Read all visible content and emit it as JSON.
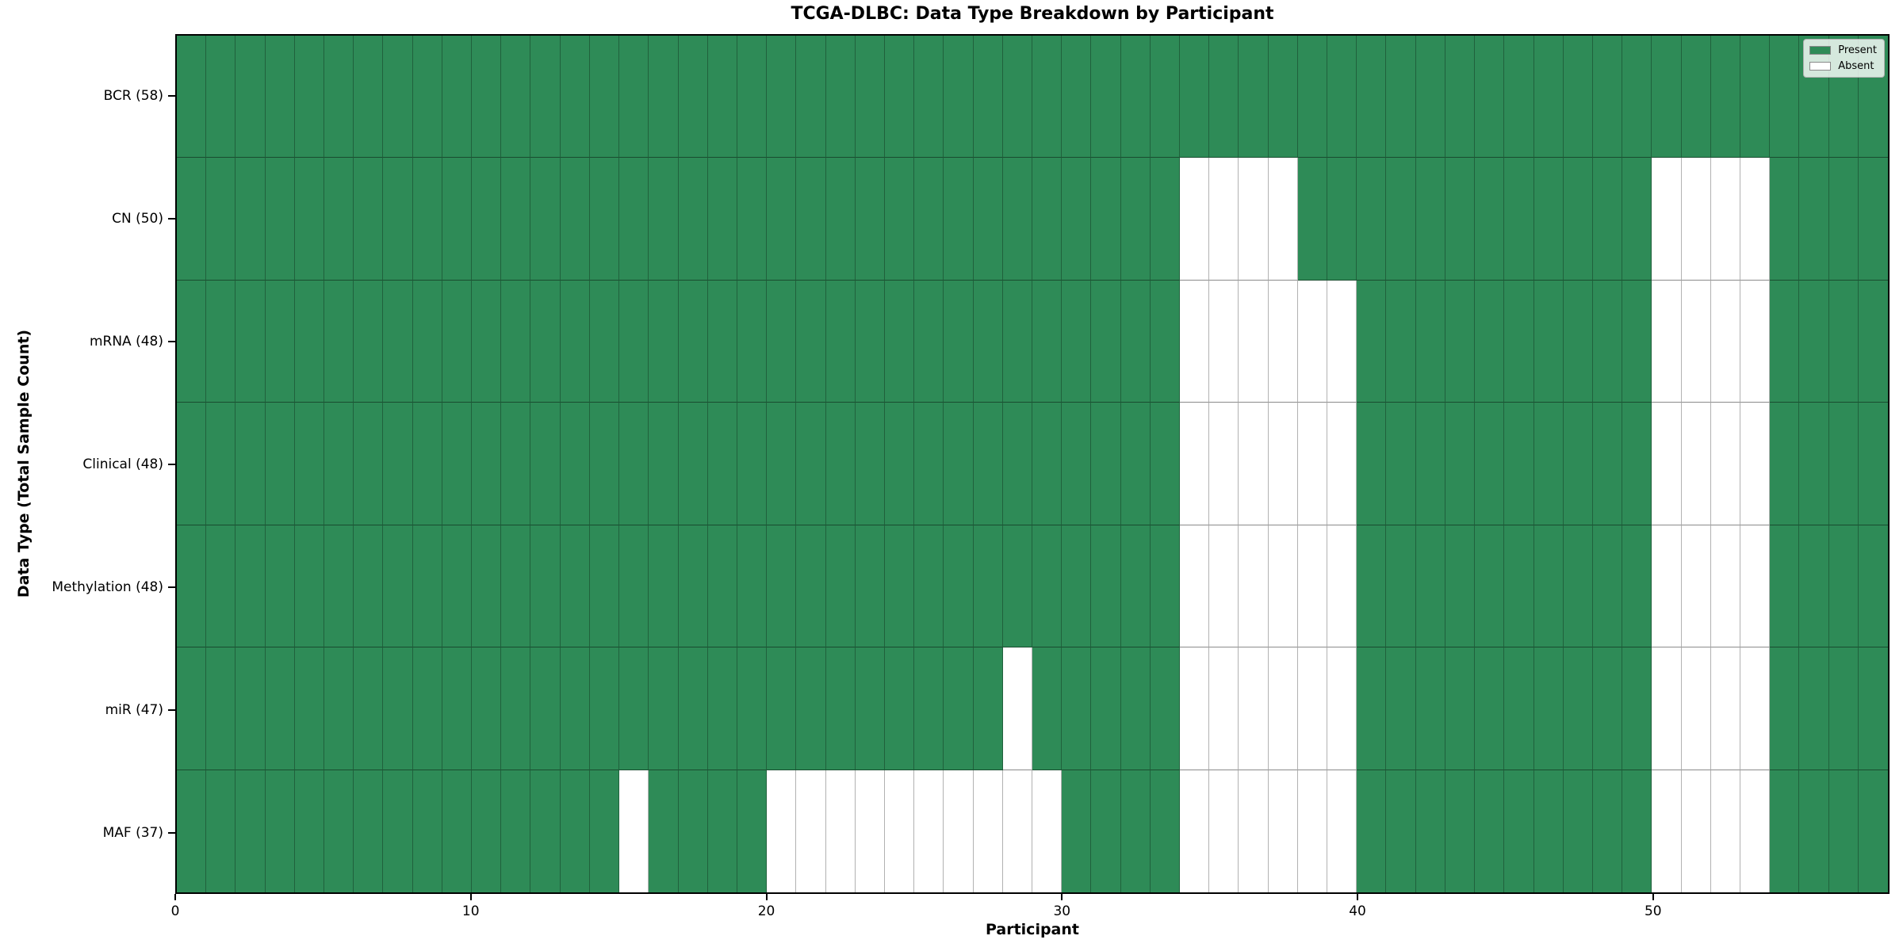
{
  "chart_data": {
    "type": "heatmap",
    "title": "TCGA-DLBC: Data Type Breakdown by Participant",
    "xlabel": "Participant",
    "ylabel": "Data Type (Total Sample Count)",
    "x_ticks": [
      0,
      10,
      20,
      30,
      40,
      50
    ],
    "x_range": [
      0,
      58
    ],
    "n_participants": 58,
    "grid": "cell-borders",
    "colors": {
      "present": "#2e8b57",
      "absent": "#ffffff"
    },
    "legend": {
      "position": "upper-right",
      "entries": [
        {
          "label": "Present",
          "color": "#2e8b57"
        },
        {
          "label": "Absent",
          "color": "#ffffff"
        }
      ]
    },
    "rows": [
      {
        "label": "BCR (58)",
        "present_count": 58,
        "absent_participants": []
      },
      {
        "label": "CN (50)",
        "present_count": 50,
        "absent_participants": [
          34,
          35,
          36,
          37,
          50,
          51,
          52,
          53
        ]
      },
      {
        "label": "mRNA (48)",
        "present_count": 48,
        "absent_participants": [
          34,
          35,
          36,
          37,
          38,
          39,
          50,
          51,
          52,
          53
        ]
      },
      {
        "label": "Clinical (48)",
        "present_count": 48,
        "absent_participants": [
          34,
          35,
          36,
          37,
          38,
          39,
          50,
          51,
          52,
          53
        ]
      },
      {
        "label": "Methylation (48)",
        "present_count": 48,
        "absent_participants": [
          34,
          35,
          36,
          37,
          38,
          39,
          50,
          51,
          52,
          53
        ]
      },
      {
        "label": "miR (47)",
        "present_count": 47,
        "absent_participants": [
          28,
          34,
          35,
          36,
          37,
          38,
          39,
          50,
          51,
          52,
          53
        ]
      },
      {
        "label": "MAF (37)",
        "present_count": 37,
        "absent_participants": [
          15,
          20,
          21,
          22,
          23,
          24,
          25,
          26,
          27,
          28,
          29,
          34,
          35,
          36,
          37,
          38,
          39,
          50,
          51,
          52,
          53
        ]
      }
    ]
  }
}
